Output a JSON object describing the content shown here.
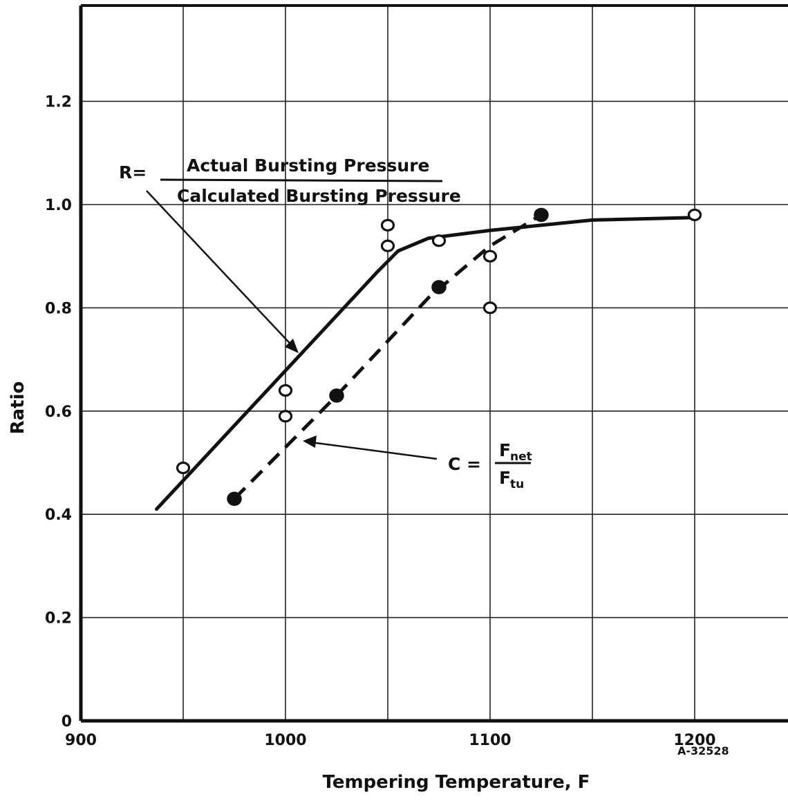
{
  "chart_data": {
    "type": "line",
    "title": "",
    "xlabel": "Tempering Temperature, F",
    "ylabel": "Ratio",
    "xlim": [
      900,
      1250
    ],
    "ylim": [
      0,
      1.4
    ],
    "x_ticks": [
      900,
      1000,
      1100,
      1200
    ],
    "y_ticks": [
      0,
      0.2,
      0.4,
      0.6,
      0.8,
      1.0,
      1.2
    ],
    "x_tick_labels": [
      "900",
      "1000",
      "1100",
      "1200"
    ],
    "y_tick_labels": [
      "0",
      "0.2",
      "0.4",
      "0.6",
      "0.8",
      "1.0",
      "1.2"
    ],
    "grid": true,
    "series": [
      {
        "name": "R",
        "line_style": "solid",
        "marker": "open-circle",
        "points": [
          {
            "x": 950,
            "y": 0.49
          },
          {
            "x": 1000,
            "y": 0.64
          },
          {
            "x": 1000,
            "y": 0.59
          },
          {
            "x": 1050,
            "y": 0.96
          },
          {
            "x": 1050,
            "y": 0.92
          },
          {
            "x": 1075,
            "y": 0.93
          },
          {
            "x": 1100,
            "y": 0.9
          },
          {
            "x": 1100,
            "y": 0.8
          },
          {
            "x": 1200,
            "y": 0.98
          }
        ],
        "curve": [
          {
            "x": 937,
            "y": 0.41
          },
          {
            "x": 1045,
            "y": 0.87
          },
          {
            "x": 1055,
            "y": 0.91
          },
          {
            "x": 1070,
            "y": 0.935
          },
          {
            "x": 1100,
            "y": 0.95
          },
          {
            "x": 1150,
            "y": 0.97
          },
          {
            "x": 1200,
            "y": 0.975
          }
        ]
      },
      {
        "name": "C",
        "line_style": "dashed",
        "marker": "filled-circle",
        "points": [
          {
            "x": 975,
            "y": 0.43
          },
          {
            "x": 1025,
            "y": 0.63
          },
          {
            "x": 1075,
            "y": 0.84
          },
          {
            "x": 1125,
            "y": 0.98
          }
        ],
        "curve": [
          {
            "x": 975,
            "y": 0.43
          },
          {
            "x": 1025,
            "y": 0.63
          },
          {
            "x": 1070,
            "y": 0.82
          },
          {
            "x": 1100,
            "y": 0.92
          },
          {
            "x": 1125,
            "y": 0.98
          }
        ]
      }
    ],
    "annotations": {
      "r_prefix": "R=",
      "r_numerator": "Actual Bursting Pressure",
      "r_denominator": "Calculated Bursting Pressure",
      "c_prefix": "C =",
      "c_num_main": "F",
      "c_num_sub": "net",
      "c_den_main": "F",
      "c_den_sub": "tu"
    },
    "figure_id": "A-32528"
  }
}
